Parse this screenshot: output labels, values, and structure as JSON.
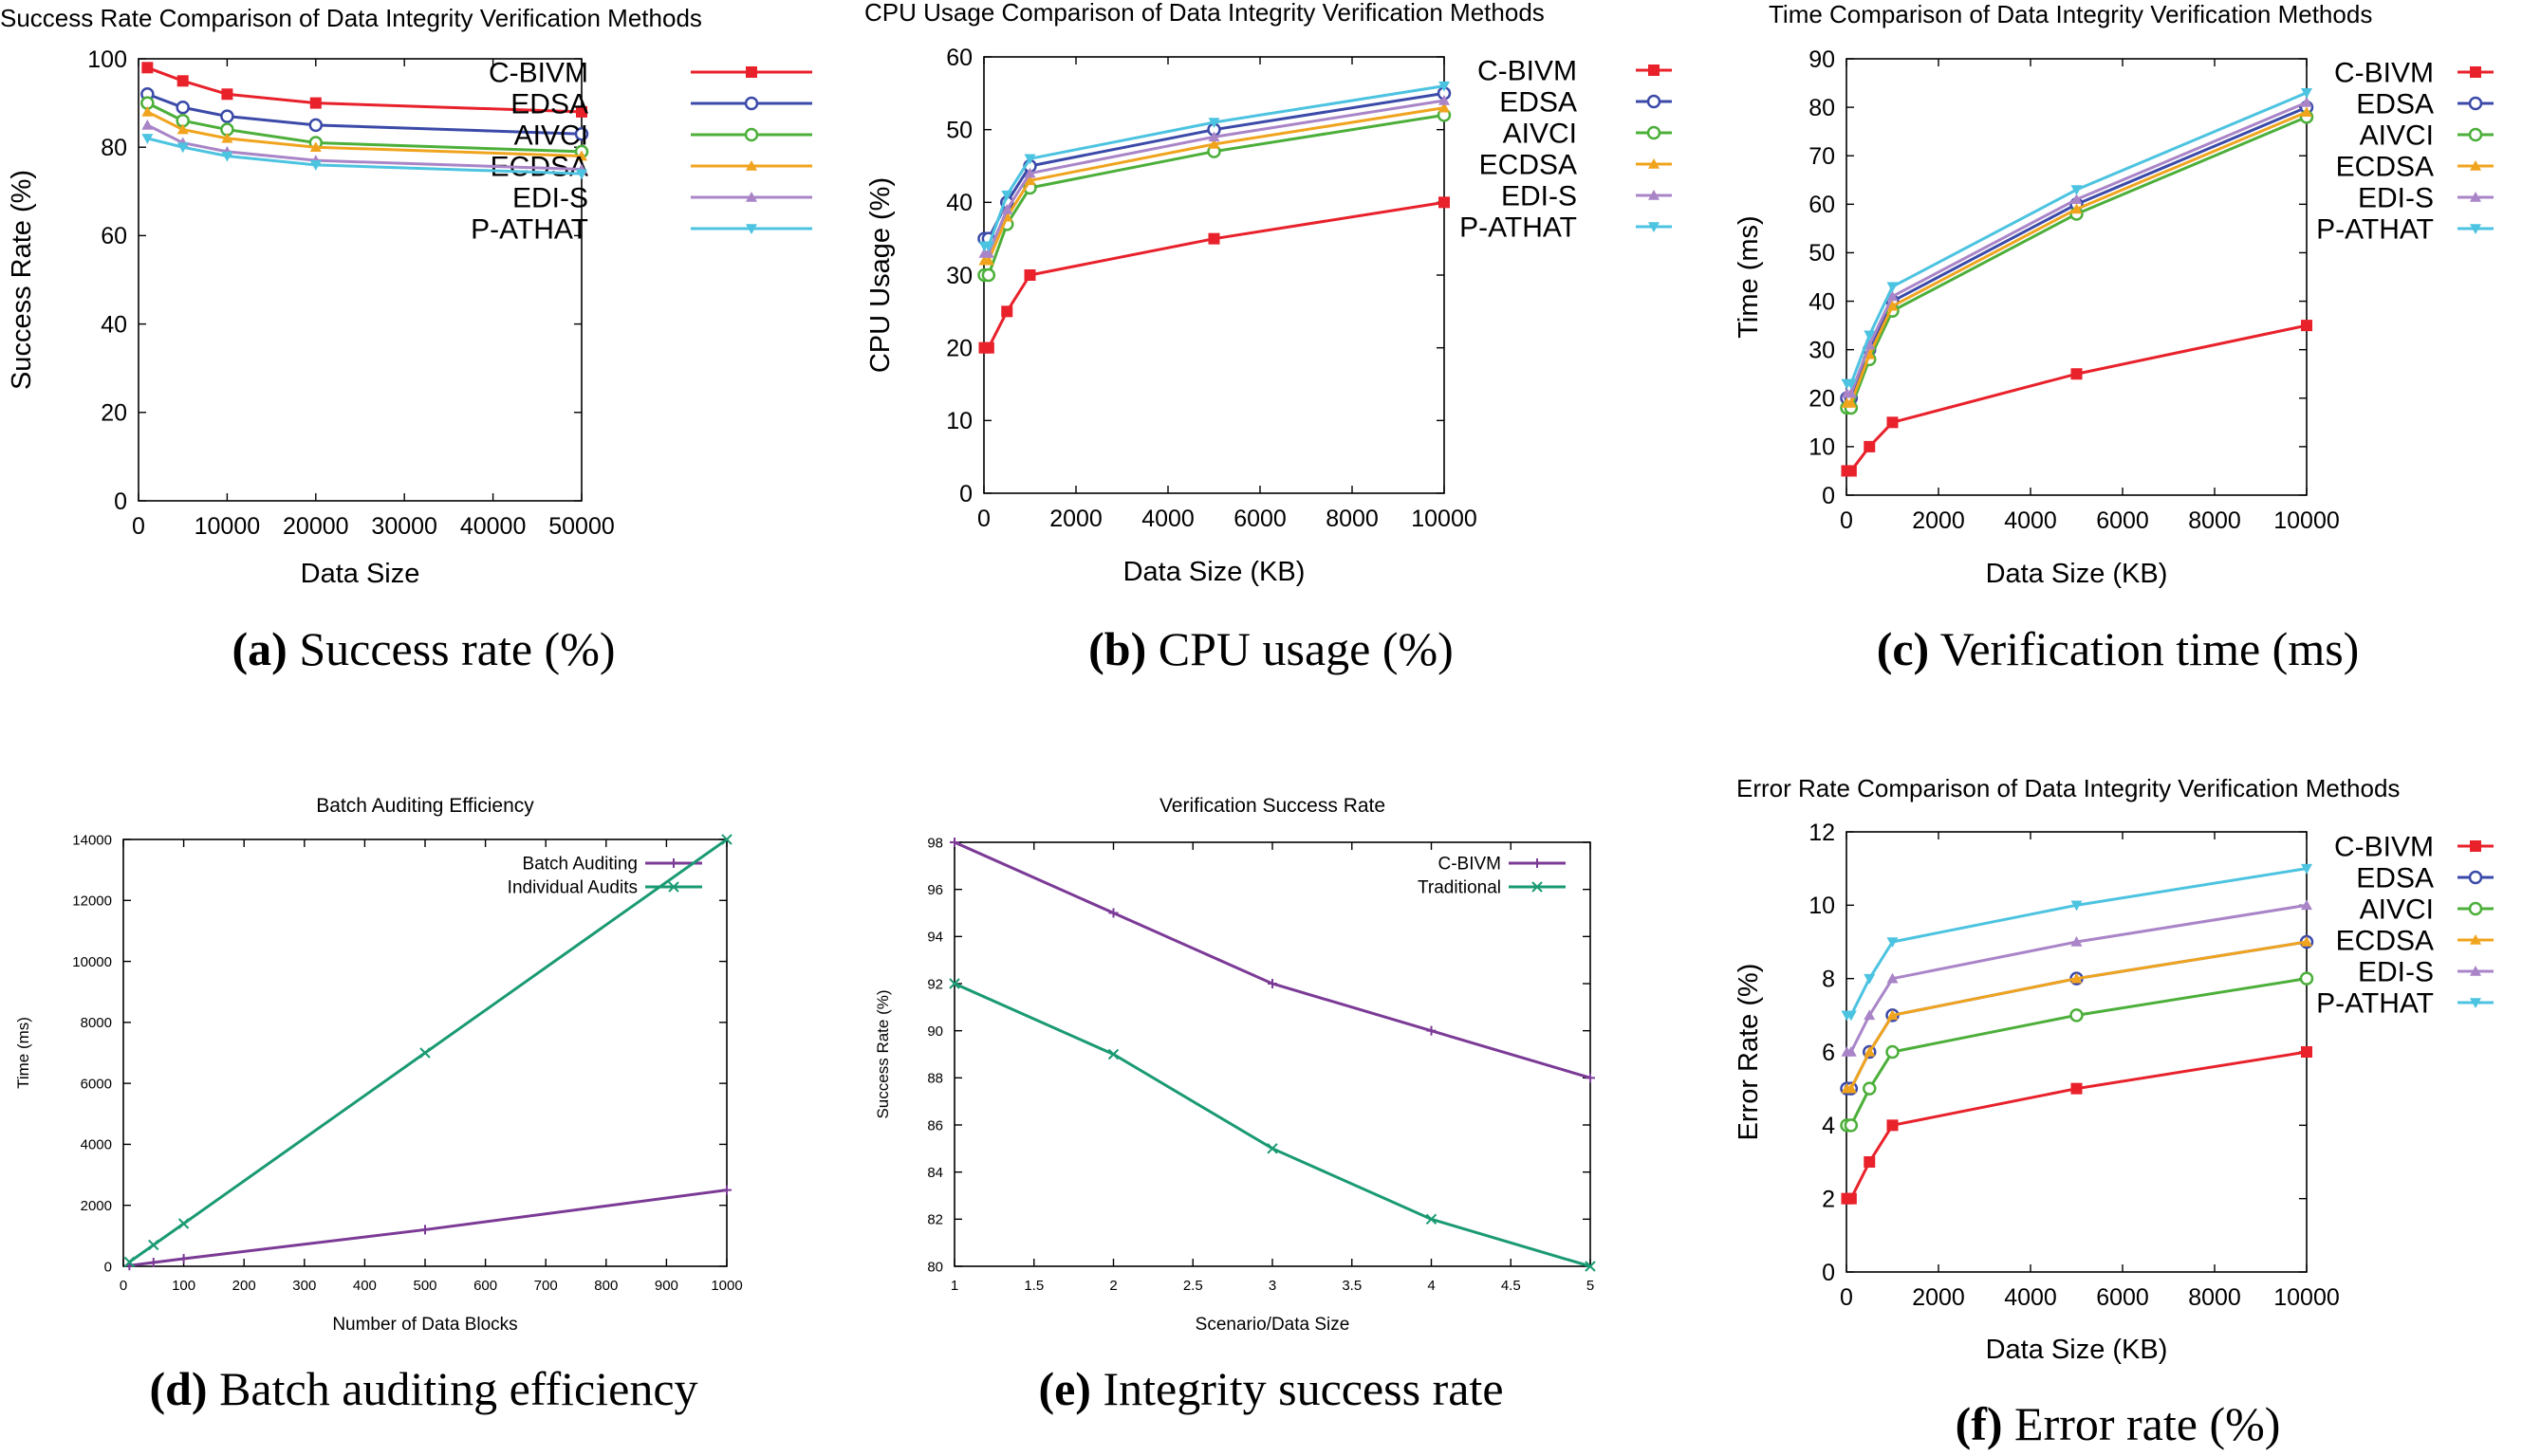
{
  "figure": {
    "panels": [
      {
        "letter": "(a)",
        "caption": " Success rate (%)"
      },
      {
        "letter": "(b)",
        "caption": " CPU usage (%)"
      },
      {
        "letter": "(c)",
        "caption": " Verification time (ms)"
      },
      {
        "letter": "(d)",
        "caption": " Batch auditing efficiency"
      },
      {
        "letter": "(e)",
        "caption": " Integrity success rate"
      },
      {
        "letter": "(f)",
        "caption": " Error rate (%)"
      }
    ]
  },
  "chart_data": [
    {
      "type": "line",
      "title": "Success Rate Comparison of Data Integrity Verification Methods",
      "xlabel": "Data Size",
      "ylabel": "Success Rate (%)",
      "xlim": [
        0,
        50000
      ],
      "ylim": [
        0,
        100
      ],
      "xticks": [
        0,
        10000,
        20000,
        30000,
        40000,
        50000
      ],
      "yticks": [
        0,
        20,
        40,
        60,
        80,
        100
      ],
      "x": [
        1000,
        5000,
        10000,
        20000,
        50000
      ],
      "legend": "top-right",
      "series": [
        {
          "name": "C-BIVM",
          "color": "#e8212b",
          "marker": "square",
          "values": [
            98,
            95,
            92,
            90,
            88
          ]
        },
        {
          "name": "EDSA",
          "color": "#3b4aa8",
          "marker": "circle",
          "values": [
            92,
            89,
            87,
            85,
            83
          ]
        },
        {
          "name": "AIVCI",
          "color": "#4caf3a",
          "marker": "circle",
          "values": [
            90,
            86,
            84,
            81,
            79
          ]
        },
        {
          "name": "ECDSA",
          "color": "#f0a41e",
          "marker": "triangle",
          "values": [
            88,
            84,
            82,
            80,
            78
          ]
        },
        {
          "name": "EDI-S",
          "color": "#a985c8",
          "marker": "triangle",
          "values": [
            85,
            81,
            79,
            77,
            75
          ]
        },
        {
          "name": "P-ATHAT",
          "color": "#4cc3e0",
          "marker": "triangle-down",
          "values": [
            82,
            80,
            78,
            76,
            74
          ]
        }
      ]
    },
    {
      "type": "line",
      "title": "CPU Usage Comparison of Data Integrity Verification Methods",
      "xlabel": "Data Size (KB)",
      "ylabel": "CPU Usage (%)",
      "xlim": [
        0,
        10000
      ],
      "ylim": [
        0,
        60
      ],
      "xticks": [
        0,
        2000,
        4000,
        6000,
        8000,
        10000
      ],
      "yticks": [
        0,
        10,
        20,
        30,
        40,
        50,
        60
      ],
      "x": [
        10,
        100,
        500,
        1000,
        5000,
        10000
      ],
      "legend": "top-right",
      "series": [
        {
          "name": "C-BIVM",
          "color": "#e8212b",
          "marker": "square",
          "values": [
            20,
            20,
            25,
            30,
            35,
            40
          ]
        },
        {
          "name": "EDSA",
          "color": "#3b4aa8",
          "marker": "circle",
          "values": [
            35,
            35,
            40,
            45,
            50,
            55
          ]
        },
        {
          "name": "AIVCI",
          "color": "#4caf3a",
          "marker": "circle",
          "values": [
            30,
            30,
            37,
            42,
            47,
            52
          ]
        },
        {
          "name": "ECDSA",
          "color": "#f0a41e",
          "marker": "triangle",
          "values": [
            32,
            32,
            38,
            43,
            48,
            53
          ]
        },
        {
          "name": "EDI-S",
          "color": "#a985c8",
          "marker": "triangle",
          "values": [
            33,
            33,
            39,
            44,
            49,
            54
          ]
        },
        {
          "name": "P-ATHAT",
          "color": "#4cc3e0",
          "marker": "triangle-down",
          "values": [
            34,
            34,
            41,
            46,
            51,
            56
          ]
        }
      ]
    },
    {
      "type": "line",
      "title": "Time Comparison of Data Integrity Verification Methods",
      "xlabel": "Data Size (KB)",
      "ylabel": "Time (ms)",
      "xlim": [
        0,
        10000
      ],
      "ylim": [
        0,
        90
      ],
      "xticks": [
        0,
        2000,
        4000,
        6000,
        8000,
        10000
      ],
      "yticks": [
        0,
        10,
        20,
        30,
        40,
        50,
        60,
        70,
        80,
        90
      ],
      "x": [
        10,
        100,
        500,
        1000,
        5000,
        10000
      ],
      "legend": "top-right",
      "series": [
        {
          "name": "C-BIVM",
          "color": "#e8212b",
          "marker": "square",
          "values": [
            5,
            5,
            10,
            15,
            25,
            35
          ]
        },
        {
          "name": "EDSA",
          "color": "#3b4aa8",
          "marker": "circle",
          "values": [
            20,
            20,
            30,
            40,
            60,
            80
          ]
        },
        {
          "name": "AIVCI",
          "color": "#4caf3a",
          "marker": "circle",
          "values": [
            18,
            18,
            28,
            38,
            58,
            78
          ]
        },
        {
          "name": "ECDSA",
          "color": "#f0a41e",
          "marker": "triangle",
          "values": [
            19,
            19,
            29,
            39,
            59,
            79
          ]
        },
        {
          "name": "EDI-S",
          "color": "#a985c8",
          "marker": "triangle",
          "values": [
            21,
            21,
            31,
            41,
            61,
            81
          ]
        },
        {
          "name": "P-ATHAT",
          "color": "#4cc3e0",
          "marker": "triangle-down",
          "values": [
            23,
            23,
            33,
            43,
            63,
            83
          ]
        }
      ]
    },
    {
      "type": "line",
      "title": "Batch Auditing Efficiency",
      "xlabel": "Number of Data Blocks",
      "ylabel": "Time (ms)",
      "xlim": [
        0,
        1000
      ],
      "ylim": [
        0,
        14000
      ],
      "xticks": [
        0,
        100,
        200,
        300,
        400,
        500,
        600,
        700,
        800,
        900,
        1000
      ],
      "yticks": [
        0,
        2000,
        4000,
        6000,
        8000,
        10000,
        12000,
        14000
      ],
      "x": [
        10,
        50,
        100,
        500,
        1000
      ],
      "legend": "top-right",
      "series": [
        {
          "name": "Batch Auditing",
          "color": "#7b3a96",
          "marker": "plus",
          "values": [
            25,
            125,
            250,
            1200,
            2500
          ]
        },
        {
          "name": "Individual Audits",
          "color": "#1a9a73",
          "marker": "x",
          "values": [
            140,
            700,
            1400,
            7000,
            14000
          ]
        }
      ]
    },
    {
      "type": "line",
      "title": "Verification Success Rate",
      "xlabel": "Scenario/Data Size",
      "ylabel": "Success Rate (%)",
      "xlim": [
        1,
        5
      ],
      "ylim": [
        80,
        98
      ],
      "xticks": [
        1,
        1.5,
        2,
        2.5,
        3,
        3.5,
        4,
        4.5,
        5
      ],
      "yticks": [
        80,
        82,
        84,
        86,
        88,
        90,
        92,
        94,
        96,
        98
      ],
      "x": [
        1,
        2,
        3,
        4,
        5
      ],
      "legend": "top-right",
      "series": [
        {
          "name": "C-BIVM",
          "color": "#7b3a96",
          "marker": "plus",
          "values": [
            98,
            95,
            92,
            90,
            88
          ]
        },
        {
          "name": "Traditional",
          "color": "#1a9a73",
          "marker": "x",
          "values": [
            92,
            89,
            85,
            82,
            80
          ]
        }
      ]
    },
    {
      "type": "line",
      "title": "Error Rate Comparison of Data Integrity Verification Methods",
      "xlabel": "Data Size (KB)",
      "ylabel": "Error Rate (%)",
      "xlim": [
        0,
        10000
      ],
      "ylim": [
        0,
        12
      ],
      "xticks": [
        0,
        2000,
        4000,
        6000,
        8000,
        10000
      ],
      "yticks": [
        0,
        2,
        4,
        6,
        8,
        10,
        12
      ],
      "x": [
        10,
        100,
        500,
        1000,
        5000,
        10000
      ],
      "legend": "top-right",
      "series": [
        {
          "name": "C-BIVM",
          "color": "#e8212b",
          "marker": "square",
          "values": [
            2,
            2,
            3,
            4,
            5,
            6
          ]
        },
        {
          "name": "EDSA",
          "color": "#3b4aa8",
          "marker": "circle",
          "values": [
            5,
            5,
            6,
            7,
            8,
            9
          ]
        },
        {
          "name": "AIVCI",
          "color": "#4caf3a",
          "marker": "circle",
          "values": [
            4,
            4,
            5,
            6,
            7,
            8
          ]
        },
        {
          "name": "ECDSA",
          "color": "#f0a41e",
          "marker": "triangle",
          "values": [
            5,
            5,
            6,
            7,
            8,
            9
          ]
        },
        {
          "name": "EDI-S",
          "color": "#a985c8",
          "marker": "triangle",
          "values": [
            6,
            6,
            7,
            8,
            9,
            10
          ]
        },
        {
          "name": "P-ATHAT",
          "color": "#4cc3e0",
          "marker": "triangle-down",
          "values": [
            7,
            7,
            8,
            9,
            10,
            11
          ]
        }
      ]
    }
  ]
}
